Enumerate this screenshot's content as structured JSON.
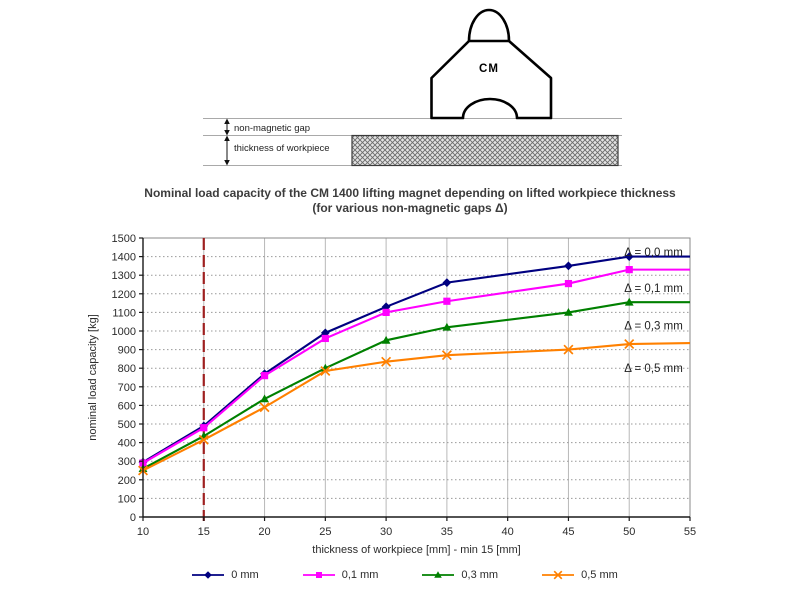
{
  "diagram": {
    "magnet_label": "CM",
    "gap_label": "non-magnetic gap",
    "workpiece_label": "thickness of workpiece"
  },
  "title": {
    "line1": "Nominal load capacity of the CM 1400 lifting magnet depending on lifted workpiece thickness",
    "line2": "(for various non-magnetic gaps Δ)"
  },
  "chart_data": {
    "type": "line",
    "x": [
      10,
      15,
      20,
      25,
      30,
      35,
      45,
      50,
      55
    ],
    "markers_at": [
      10,
      15,
      20,
      25,
      30,
      35,
      45,
      50
    ],
    "series": [
      {
        "name": "0 mm",
        "color": "#000080",
        "marker": "diamond",
        "values": [
          295,
          490,
          770,
          990,
          1130,
          1260,
          1350,
          1400,
          1400
        ]
      },
      {
        "name": "0,1 mm",
        "color": "#FF00FF",
        "marker": "square",
        "values": [
          290,
          480,
          760,
          960,
          1100,
          1160,
          1255,
          1330,
          1330
        ]
      },
      {
        "name": "0,3 mm",
        "color": "#008000",
        "marker": "triangle",
        "values": [
          260,
          435,
          635,
          800,
          950,
          1020,
          1100,
          1155,
          1155
        ]
      },
      {
        "name": "0,5 mm",
        "color": "#FF8000",
        "marker": "x",
        "values": [
          250,
          415,
          590,
          785,
          835,
          870,
          900,
          930,
          935
        ]
      }
    ],
    "annotations": [
      {
        "text": "Δ = 0,0 mm",
        "x": 52,
        "y": 1425
      },
      {
        "text": "Δ = 0,1 mm",
        "x": 52,
        "y": 1230
      },
      {
        "text": "Δ = 0,3 mm",
        "x": 52,
        "y": 1030
      },
      {
        "text": "Δ = 0,5 mm",
        "x": 52,
        "y": 800
      }
    ],
    "reference_line": {
      "x": 15,
      "color": "#9E2020",
      "style": "dash-dot"
    },
    "xlabel": "thickness of workpiece [mm] - min 15 [mm]",
    "ylabel": "nominal load capacity [kg]",
    "xlim": [
      10,
      55
    ],
    "ylim": [
      0,
      1500
    ],
    "x_tick_step": 5,
    "y_tick_step": 100,
    "grid": "on",
    "legend_position": "bottom",
    "colors": {
      "grid_dotted": "#999999",
      "grid_vertical": "#b8b8b8",
      "frame": "#8a8a8a",
      "axis": "#1a1a1a",
      "tick_text": "#2b2b2b",
      "annotation_text": "#222222"
    }
  }
}
